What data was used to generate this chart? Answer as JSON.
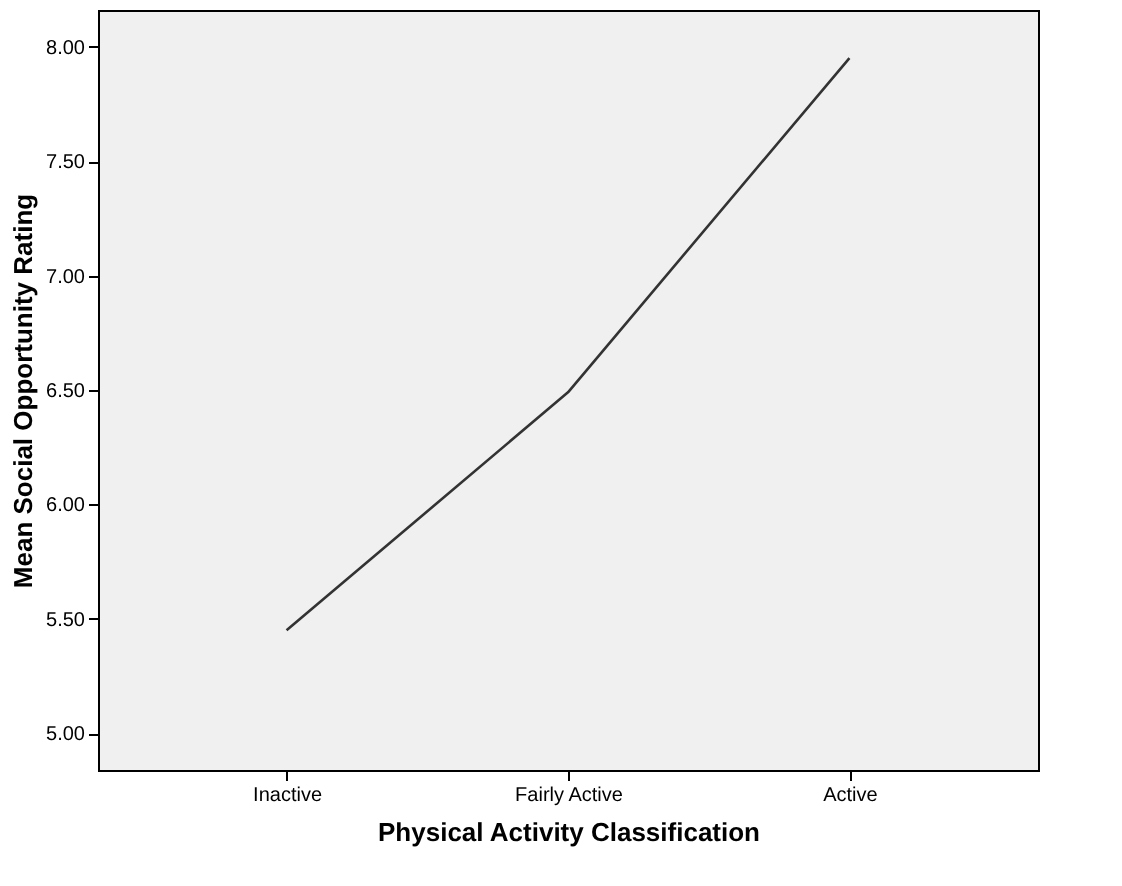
{
  "chart_data": {
    "type": "line",
    "xlabel": "Physical Activity Classification",
    "ylabel": "Mean Social Opportunity Rating",
    "categories": [
      "Inactive",
      "Fairly Active",
      "Active"
    ],
    "series": [
      {
        "color": "#333333",
        "values": [
          5.45,
          6.49,
          7.95
        ]
      }
    ],
    "ylim": [
      4.84,
      8.16
    ],
    "yticks": [
      {
        "value": 5,
        "label": "5.00"
      },
      {
        "value": 5.5,
        "label": "5.50"
      },
      {
        "value": 6,
        "label": "6.00"
      },
      {
        "value": 6.5,
        "label": "6.50"
      },
      {
        "value": 7,
        "label": "7.00"
      },
      {
        "value": 7.5,
        "label": "7.50"
      },
      {
        "value": 8,
        "label": "8.00"
      }
    ],
    "grid": false,
    "marker": "none",
    "line_style": "solid"
  }
}
